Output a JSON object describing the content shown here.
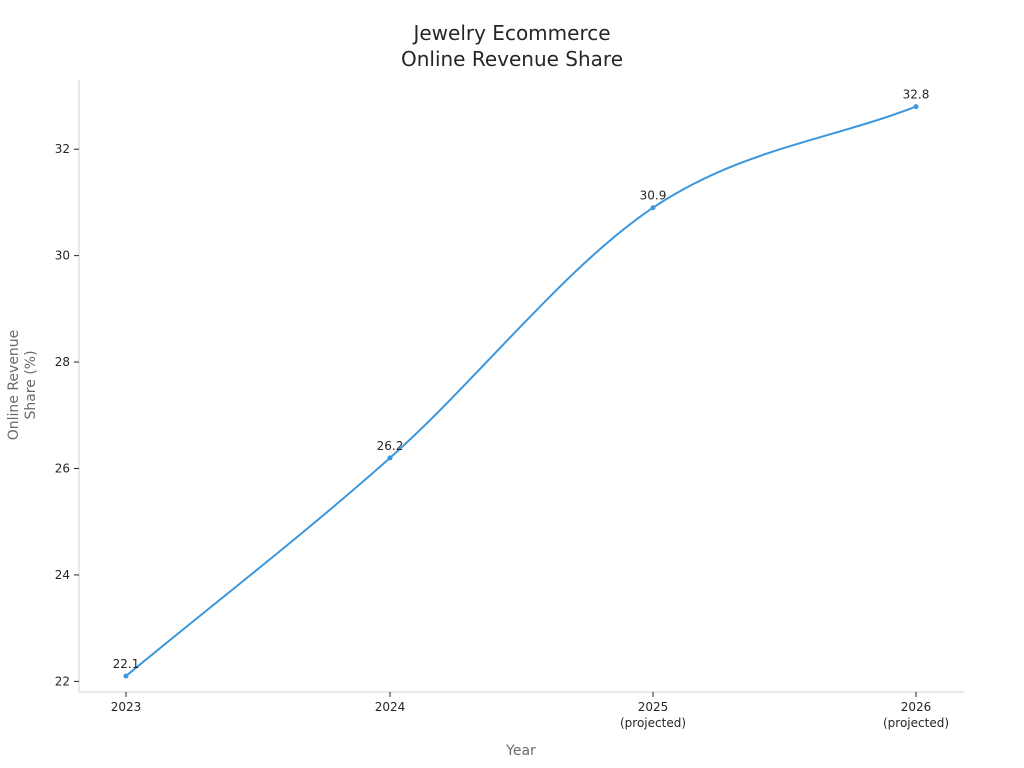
{
  "chart_data": {
    "type": "line",
    "title_lines": [
      "Jewelry Ecommerce",
      "Online Revenue Share"
    ],
    "xlabel": "Year",
    "ylabel_lines": [
      "Online Revenue",
      "Share (%)"
    ],
    "categories": [
      {
        "line1": "2023",
        "line2": ""
      },
      {
        "line1": "2024",
        "line2": ""
      },
      {
        "line1": "2025",
        "line2": "(projected)"
      },
      {
        "line1": "2026",
        "line2": "(projected)"
      }
    ],
    "series": [
      {
        "values": [
          22.1,
          26.2,
          30.9,
          32.8
        ],
        "color": "#3a96dd"
      }
    ],
    "data_labels": [
      "22.1",
      "26.2",
      "30.9",
      "32.8"
    ],
    "yticks": [
      22,
      24,
      26,
      28,
      30,
      32
    ],
    "ylim": [
      21.8,
      33.3
    ],
    "smooth": true,
    "grid": false,
    "legend": "none"
  }
}
